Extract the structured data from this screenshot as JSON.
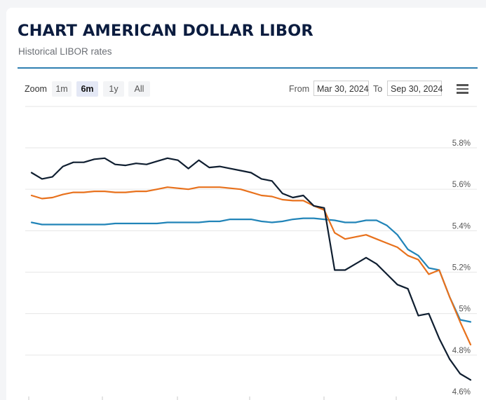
{
  "header": {
    "title": "CHART AMERICAN DOLLAR LIBOR",
    "subtitle": "Historical LIBOR rates"
  },
  "toolbar": {
    "zoom_label": "Zoom",
    "zoom_options": [
      "1m",
      "6m",
      "1y",
      "All"
    ],
    "zoom_selected": "6m",
    "from_label": "From",
    "from_value": "Mar 30, 2024",
    "to_label": "To",
    "to_value": "Sep 30, 2024",
    "menu_icon": "hamburger-menu-icon"
  },
  "chart_data": {
    "type": "line",
    "y_unit": "%",
    "yticks": [
      4.6,
      4.8,
      5.0,
      5.2,
      5.4,
      5.6,
      5.8
    ],
    "ytick_labels": [
      "4.6%",
      "4.8%",
      "5%",
      "5.2%",
      "5.4%",
      "5.6%",
      "5.8%"
    ],
    "ylim": [
      4.6,
      5.9
    ],
    "x_range": [
      "Mar 30, 2024",
      "Sep 30, 2024"
    ],
    "grid": true,
    "series": [
      {
        "color": "#0f1e30",
        "values": [
          5.68,
          5.65,
          5.66,
          5.71,
          5.73,
          5.73,
          5.745,
          5.75,
          5.72,
          5.715,
          5.725,
          5.72,
          5.735,
          5.75,
          5.74,
          5.7,
          5.74,
          5.705,
          5.71,
          5.7,
          5.69,
          5.68,
          5.65,
          5.64,
          5.58,
          5.56,
          5.57,
          5.52,
          5.51,
          5.21,
          5.21,
          5.24,
          5.27,
          5.24,
          5.19,
          5.14,
          5.12,
          4.99,
          5.0,
          4.88,
          4.78,
          4.71,
          4.68
        ]
      },
      {
        "color": "#e8711c",
        "values": [
          5.57,
          5.555,
          5.56,
          5.575,
          5.585,
          5.585,
          5.59,
          5.59,
          5.585,
          5.585,
          5.59,
          5.59,
          5.6,
          5.61,
          5.605,
          5.6,
          5.61,
          5.61,
          5.61,
          5.605,
          5.6,
          5.585,
          5.57,
          5.565,
          5.55,
          5.545,
          5.545,
          5.52,
          5.5,
          5.39,
          5.36,
          5.37,
          5.38,
          5.36,
          5.34,
          5.32,
          5.28,
          5.26,
          5.19,
          5.21,
          5.08,
          4.96,
          4.85
        ]
      },
      {
        "color": "#2184b8",
        "values": [
          5.44,
          5.43,
          5.43,
          5.43,
          5.43,
          5.43,
          5.43,
          5.43,
          5.435,
          5.435,
          5.435,
          5.435,
          5.435,
          5.44,
          5.44,
          5.44,
          5.44,
          5.445,
          5.445,
          5.455,
          5.455,
          5.455,
          5.445,
          5.44,
          5.445,
          5.455,
          5.46,
          5.46,
          5.455,
          5.45,
          5.44,
          5.44,
          5.45,
          5.45,
          5.425,
          5.38,
          5.31,
          5.28,
          5.22,
          5.21,
          5.08,
          4.97,
          4.96
        ]
      }
    ]
  }
}
